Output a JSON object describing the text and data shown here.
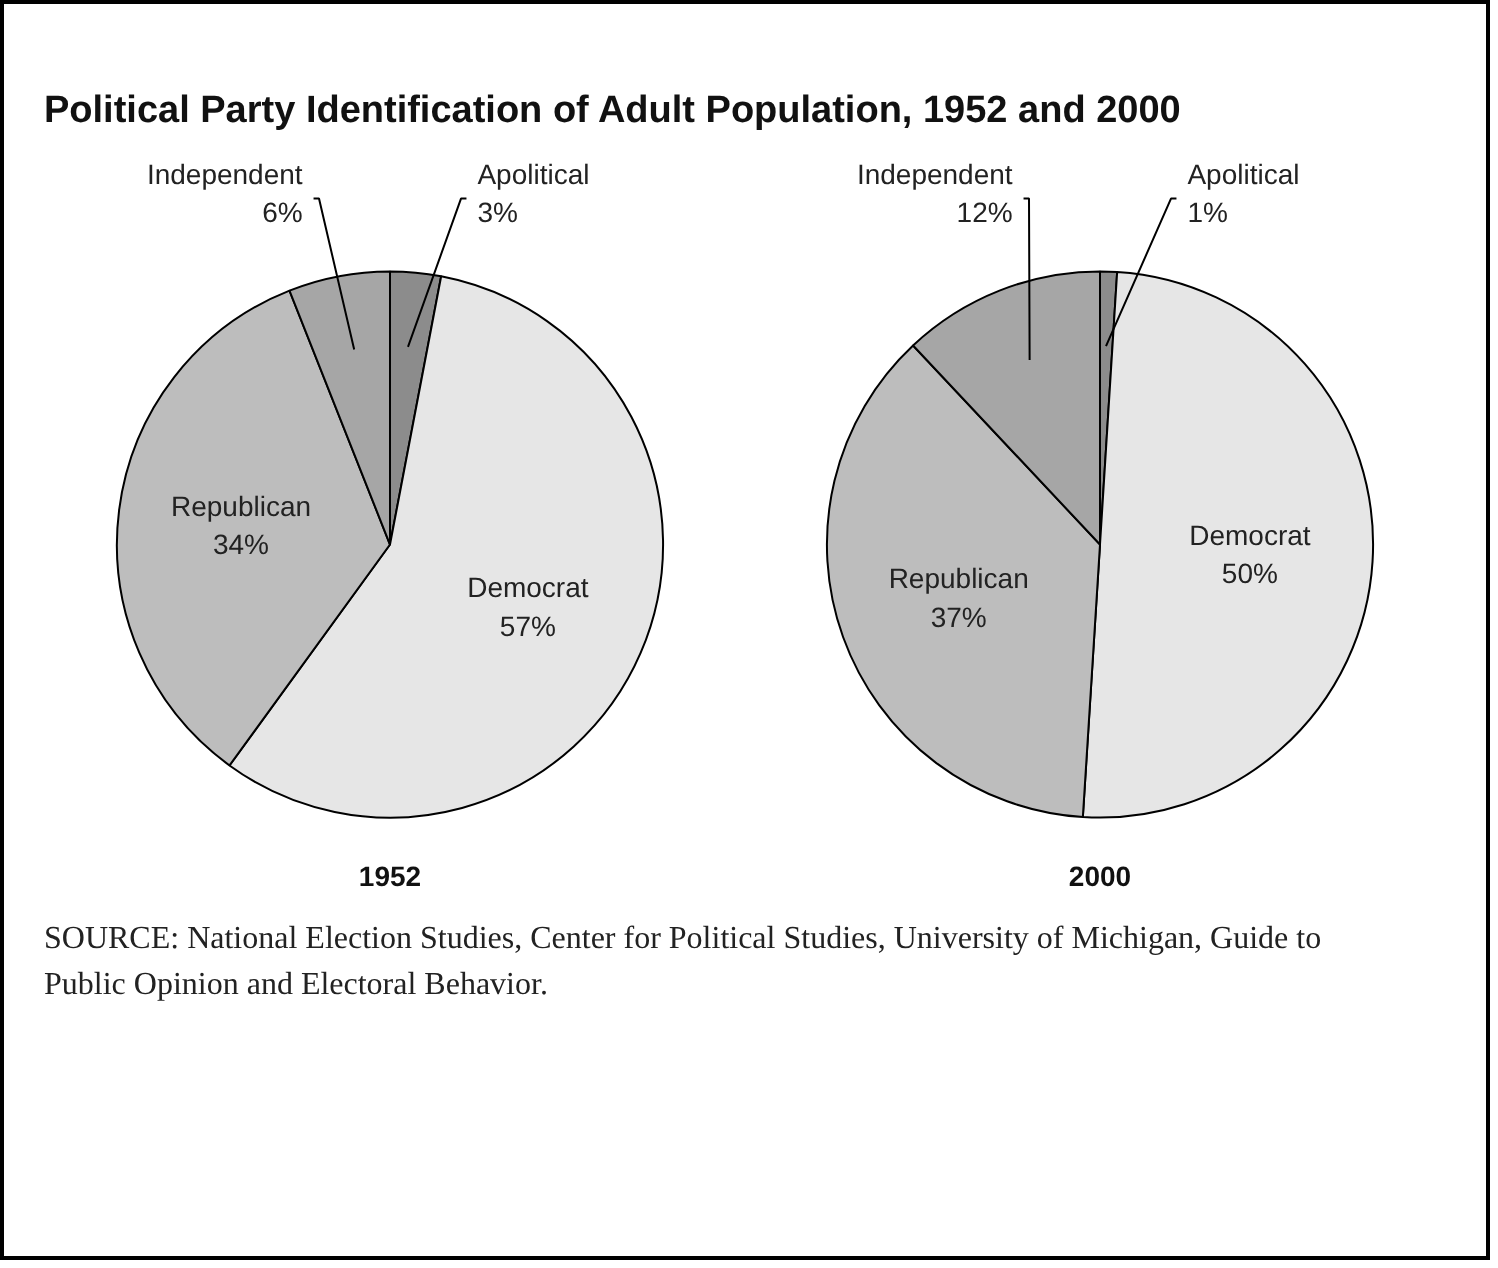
{
  "chart_data": [
    {
      "type": "pie",
      "title": "Political Party Identification of Adult Population, 1952 and 2000",
      "xlabel": "1952",
      "categories": [
        "Apolitical",
        "Democrat",
        "Republican",
        "Independent"
      ],
      "values": [
        3,
        57,
        34,
        6
      ],
      "value_labels": [
        "3%",
        "57%",
        "34%",
        "6%"
      ],
      "colors": [
        "#8c8c8c",
        "#e6e6e6",
        "#bdbdbd",
        "#a6a6a6"
      ]
    },
    {
      "type": "pie",
      "xlabel": "2000",
      "categories": [
        "Apolitical",
        "Democrat",
        "Republican",
        "Independent"
      ],
      "values": [
        1,
        50,
        37,
        12
      ],
      "value_labels": [
        "1%",
        "50%",
        "37%",
        "12%"
      ],
      "colors": [
        "#8c8c8c",
        "#e6e6e6",
        "#bdbdbd",
        "#a6a6a6"
      ],
      "annotations": [
        "SOURCE: National Election Studies, Center for Political Studies, University of Michigan, Guide to Public Opinion and Electoral Behavior."
      ]
    }
  ]
}
